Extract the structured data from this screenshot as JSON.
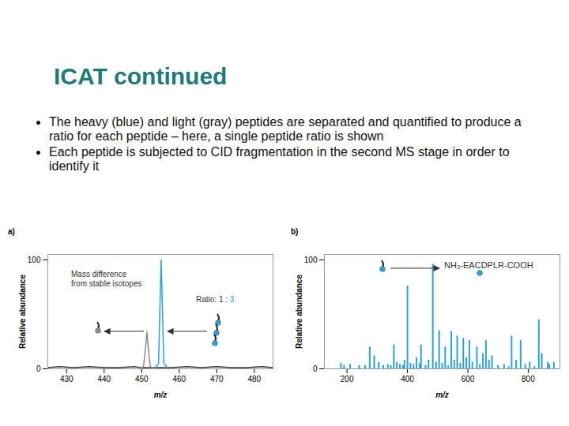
{
  "slide": {
    "title": "ICAT continued",
    "bullets": [
      "The heavy (blue) and light (gray) peptides are separated and quantified to produce a ratio for each peptide – here, a single peptide ratio is shown",
      "Each peptide is subjected to CID fragmentation in the second MS stage in order to identify it"
    ]
  },
  "chart_data": [
    {
      "type": "line",
      "panel": "a)",
      "x_label": "m/z",
      "y_label": "Relative abundance",
      "xlim": [
        425,
        485
      ],
      "xticks": [
        430,
        440,
        450,
        460,
        470,
        480
      ],
      "ylim": [
        0,
        105
      ],
      "yticks": [
        0,
        100
      ],
      "grid": false,
      "annotations": [
        "Mass difference from stable isotopes"
      ],
      "ratio_label": {
        "text": "Ratio: 1 : ",
        "highlight": "3",
        "color": "#29a3d9"
      },
      "series": [
        {
          "color": "#333333",
          "x": [
            425,
            428,
            432,
            436,
            440,
            444,
            448,
            450,
            458,
            462,
            466,
            470,
            474,
            478,
            482,
            485
          ],
          "values": [
            1,
            2,
            1,
            2,
            1,
            1,
            2,
            1,
            1,
            2,
            1,
            2,
            1,
            1,
            2,
            1
          ]
        },
        {
          "color": "#8c8c8c",
          "x": [
            449.5,
            450.5,
            451,
            451.4,
            451.8,
            452.3,
            453.3
          ],
          "values": [
            0.5,
            2,
            18,
            34,
            18,
            2,
            0.5
          ]
        },
        {
          "color": "#29a3d9",
          "x": [
            453.5,
            454.5,
            454.9,
            455.2,
            455.5,
            455.9,
            457
          ],
          "values": [
            0.5,
            5,
            60,
            100,
            60,
            5,
            0.5
          ]
        }
      ]
    },
    {
      "type": "bar",
      "panel": "b)",
      "x_label": "m/z",
      "y_label": "Relative abundance",
      "xlim": [
        125,
        905
      ],
      "xticks": [
        200,
        400,
        600,
        800
      ],
      "ylim": [
        0,
        105
      ],
      "yticks": [
        0,
        100
      ],
      "grid": false,
      "color": "#29a3d9",
      "annotations": [
        "NH₃-EACDPLR-COOH"
      ],
      "x": [
        180,
        190,
        210,
        240,
        260,
        275,
        290,
        305,
        320,
        335,
        345,
        355,
        365,
        375,
        385,
        390,
        400,
        410,
        420,
        430,
        440,
        445,
        460,
        470,
        484,
        495,
        505,
        515,
        525,
        535,
        545,
        555,
        565,
        575,
        585,
        595,
        605,
        615,
        630,
        640,
        650,
        660,
        670,
        680,
        700,
        720,
        735,
        745,
        760,
        775,
        790,
        805,
        820,
        835,
        845,
        865,
        870,
        885
      ],
      "values": [
        5,
        3,
        4,
        3,
        3,
        20,
        12,
        6,
        3,
        4,
        3,
        22,
        6,
        4,
        3,
        8,
        76,
        5,
        4,
        10,
        5,
        22,
        3,
        8,
        96,
        6,
        35,
        5,
        20,
        3,
        34,
        8,
        30,
        5,
        28,
        10,
        26,
        6,
        20,
        4,
        14,
        26,
        8,
        12,
        3,
        4,
        2,
        30,
        8,
        26,
        4,
        6,
        2,
        45,
        14,
        6,
        4,
        6
      ]
    }
  ]
}
